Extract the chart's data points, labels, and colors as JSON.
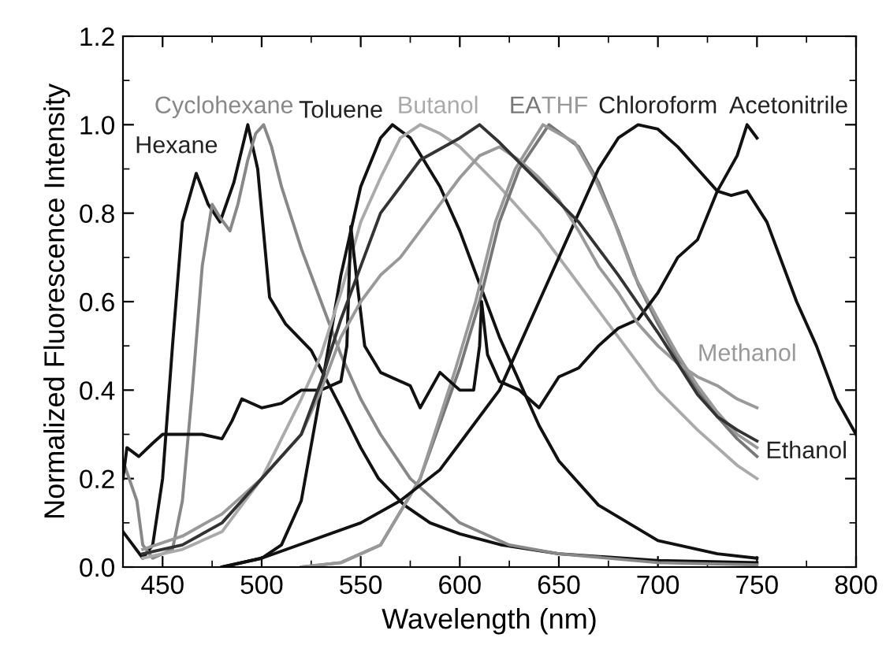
{
  "chart_data": {
    "type": "line",
    "xlabel": "Wavelength (nm)",
    "ylabel": "Normalized Fluorescence Intensity",
    "xlim": [
      430,
      800
    ],
    "xticks": [
      450,
      500,
      550,
      600,
      650,
      700,
      750,
      800
    ],
    "ylim": [
      0,
      1.2
    ],
    "yticks": [
      {
        "value": 0,
        "label": "0.0"
      },
      0.2,
      0.4,
      0.6,
      0.8,
      {
        "value": 1,
        "label": "1.0"
      },
      1.2
    ],
    "grid": false,
    "marker": "none",
    "line_style": "solid",
    "series": [
      {
        "name": "Hexane",
        "color": "#111111",
        "x": [
          430,
          435,
          440,
          445,
          450,
          455,
          460,
          467,
          473,
          479,
          486,
          493,
          498,
          504,
          512,
          525,
          540,
          550,
          559,
          572,
          585,
          600,
          621,
          650,
          700,
          750
        ],
        "values": [
          0.08,
          0.05,
          0.02,
          0.05,
          0.2,
          0.5,
          0.78,
          0.89,
          0.82,
          0.78,
          0.87,
          1.0,
          0.9,
          0.61,
          0.55,
          0.49,
          0.36,
          0.27,
          0.2,
          0.14,
          0.1,
          0.075,
          0.05,
          0.03,
          0.015,
          0.01
        ]
      },
      {
        "name": "Cyclohexane",
        "color": "#888888",
        "x": [
          430,
          437,
          440,
          445,
          455,
          460,
          465,
          470,
          475,
          479,
          484,
          488,
          493,
          497,
          501,
          505,
          510,
          520,
          530,
          540,
          550,
          560,
          575,
          600,
          625,
          650,
          700,
          750
        ],
        "values": [
          0.24,
          0.15,
          0.05,
          0.02,
          0.04,
          0.15,
          0.4,
          0.68,
          0.82,
          0.79,
          0.76,
          0.82,
          0.92,
          0.98,
          1.0,
          0.95,
          0.86,
          0.72,
          0.6,
          0.48,
          0.38,
          0.3,
          0.2,
          0.1,
          0.05,
          0.03,
          0.01,
          0.005
        ]
      },
      {
        "name": "Toluene",
        "color": "#111111",
        "x": [
          480,
          500,
          510,
          520,
          530,
          540,
          550,
          560,
          566,
          575,
          590,
          600,
          610,
          620,
          630,
          640,
          650,
          670,
          700,
          730,
          750
        ],
        "values": [
          0.0,
          0.02,
          0.05,
          0.15,
          0.4,
          0.66,
          0.86,
          0.97,
          1.0,
          0.97,
          0.86,
          0.76,
          0.64,
          0.52,
          0.42,
          0.32,
          0.24,
          0.14,
          0.06,
          0.03,
          0.02
        ]
      },
      {
        "name": "Butanol",
        "color": "#aaaaaa",
        "x": [
          440,
          460,
          480,
          500,
          520,
          530,
          540,
          550,
          560,
          570,
          580,
          590,
          600,
          620,
          640,
          660,
          680,
          700,
          720,
          740,
          750
        ],
        "values": [
          0.02,
          0.04,
          0.08,
          0.2,
          0.38,
          0.48,
          0.62,
          0.78,
          0.88,
          0.97,
          1.0,
          0.98,
          0.95,
          0.86,
          0.76,
          0.64,
          0.52,
          0.4,
          0.31,
          0.23,
          0.2
        ]
      },
      {
        "name": "EA",
        "color": "#777777",
        "x": [
          520,
          540,
          560,
          580,
          600,
          610,
          620,
          630,
          645,
          660,
          670,
          680,
          690,
          700,
          710,
          720,
          730,
          740,
          750
        ],
        "values": [
          0.0,
          0.01,
          0.05,
          0.2,
          0.45,
          0.6,
          0.78,
          0.9,
          1.0,
          0.95,
          0.87,
          0.76,
          0.64,
          0.55,
          0.47,
          0.4,
          0.34,
          0.29,
          0.25
        ]
      },
      {
        "name": "THF",
        "color": "#999999",
        "x": [
          520,
          540,
          560,
          580,
          598,
          608,
          618,
          628,
          642,
          658,
          668,
          678,
          688,
          700,
          710,
          720,
          730,
          740,
          750
        ],
        "values": [
          0.0,
          0.01,
          0.05,
          0.2,
          0.45,
          0.6,
          0.78,
          0.9,
          1.0,
          0.96,
          0.88,
          0.78,
          0.66,
          0.56,
          0.48,
          0.41,
          0.35,
          0.3,
          0.27
        ]
      },
      {
        "name": "Chloroform",
        "color": "#111111",
        "x": [
          480,
          500,
          550,
          570,
          590,
          600,
          620,
          630,
          640,
          650,
          660,
          670,
          680,
          690,
          700,
          710,
          720,
          730,
          737,
          745,
          755,
          770,
          780,
          790,
          800
        ],
        "values": [
          0.0,
          0.02,
          0.1,
          0.15,
          0.22,
          0.28,
          0.4,
          0.5,
          0.6,
          0.7,
          0.8,
          0.9,
          0.97,
          1.0,
          0.99,
          0.95,
          0.9,
          0.85,
          0.84,
          0.85,
          0.78,
          0.6,
          0.5,
          0.38,
          0.3
        ]
      },
      {
        "name": "Acetonitrile",
        "color": "#111111",
        "x": [
          430,
          432,
          438,
          445,
          450,
          460,
          470,
          480,
          485,
          490,
          500,
          510,
          520,
          530,
          540,
          543,
          545,
          548,
          552,
          560,
          575,
          580,
          590,
          600,
          607,
          610,
          611,
          614,
          620,
          630,
          640,
          650,
          660,
          670,
          680,
          690,
          700,
          710,
          720,
          730,
          740,
          745,
          750
        ],
        "values": [
          0.2,
          0.27,
          0.25,
          0.28,
          0.3,
          0.3,
          0.3,
          0.29,
          0.33,
          0.38,
          0.36,
          0.37,
          0.4,
          0.4,
          0.42,
          0.5,
          0.77,
          0.65,
          0.5,
          0.44,
          0.41,
          0.36,
          0.44,
          0.4,
          0.4,
          0.5,
          0.6,
          0.48,
          0.42,
          0.4,
          0.36,
          0.43,
          0.45,
          0.5,
          0.54,
          0.56,
          0.62,
          0.7,
          0.74,
          0.85,
          0.93,
          1.0,
          0.97
        ]
      },
      {
        "name": "Methanol",
        "color": "#999999",
        "x": [
          440,
          460,
          480,
          500,
          520,
          530,
          540,
          550,
          560,
          570,
          580,
          590,
          600,
          610,
          620,
          630,
          640,
          650,
          660,
          670,
          680,
          690,
          700,
          710,
          720,
          730,
          740,
          750
        ],
        "values": [
          0.04,
          0.07,
          0.12,
          0.2,
          0.3,
          0.4,
          0.52,
          0.6,
          0.66,
          0.7,
          0.76,
          0.82,
          0.88,
          0.93,
          0.95,
          0.92,
          0.88,
          0.83,
          0.76,
          0.68,
          0.62,
          0.55,
          0.5,
          0.46,
          0.43,
          0.41,
          0.38,
          0.36
        ]
      },
      {
        "name": "Ethanol",
        "color": "#333333",
        "x": [
          440,
          460,
          480,
          500,
          520,
          530,
          540,
          550,
          560,
          570,
          580,
          600,
          610,
          620,
          640,
          660,
          680,
          700,
          710,
          720,
          730,
          740,
          750
        ],
        "values": [
          0.03,
          0.05,
          0.1,
          0.2,
          0.3,
          0.42,
          0.56,
          0.68,
          0.8,
          0.86,
          0.92,
          0.97,
          1.0,
          0.96,
          0.87,
          0.78,
          0.66,
          0.53,
          0.46,
          0.39,
          0.34,
          0.31,
          0.285
        ]
      }
    ]
  }
}
